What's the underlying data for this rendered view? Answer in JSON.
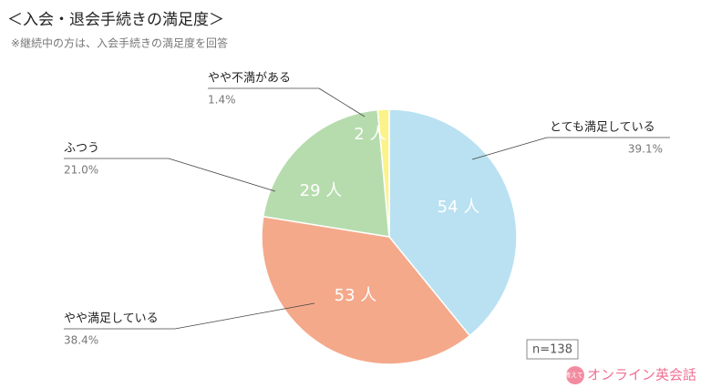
{
  "chart_data": {
    "type": "pie",
    "title": "＜入会・退会手続きの満足度＞",
    "subtitle": "※継続中の方は、入会手続きの満足度を回答",
    "categories": [
      "とても満足している",
      "やや満足している",
      "ふつう",
      "やや不満がある"
    ],
    "values": [
      54,
      53,
      29,
      2
    ],
    "value_labels": [
      "54 人",
      "53 人",
      "29 人",
      "2 人"
    ],
    "percents": [
      39.1,
      38.4,
      21.0,
      1.4
    ],
    "percent_labels": [
      "39.1%",
      "38.4%",
      "21.0%",
      "1.4%"
    ],
    "colors": [
      "#b9e1f1",
      "#f4a98a",
      "#b6dcae",
      "#fbf38a"
    ],
    "sample_size": "n=138",
    "brand": {
      "badge": "教えて!",
      "name": "オンライン英会話"
    }
  }
}
